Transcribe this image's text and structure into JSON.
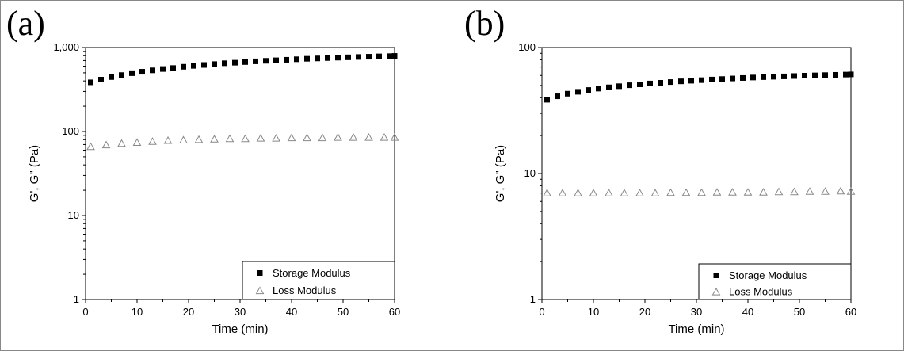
{
  "chart_data": [
    {
      "type": "scatter",
      "panel_label": "(a)",
      "xlabel": "Time (min)",
      "ylabel": "G', G\" (Pa)",
      "xlim": [
        0,
        60
      ],
      "ylim": [
        1,
        1000
      ],
      "yscale": "log",
      "xticks": [
        0,
        10,
        20,
        30,
        40,
        50,
        60
      ],
      "xtick_labels": [
        "0",
        "10",
        "20",
        "30",
        "40",
        "50",
        "60"
      ],
      "yticks": [
        1,
        10,
        100,
        1000
      ],
      "ytick_labels": [
        "1",
        "10",
        "100",
        "1,000"
      ],
      "legend_position": "bottom-right",
      "series": [
        {
          "name": "Storage Modulus",
          "marker": "filled-square",
          "color": "#000000",
          "x": [
            1,
            3,
            5,
            7,
            9,
            11,
            13,
            15,
            17,
            19,
            21,
            23,
            25,
            27,
            29,
            31,
            33,
            35,
            37,
            39,
            41,
            43,
            45,
            47,
            49,
            51,
            53,
            55,
            57,
            59,
            60
          ],
          "y": [
            385,
            415,
            445,
            470,
            495,
            515,
            535,
            555,
            570,
            590,
            605,
            620,
            635,
            650,
            660,
            672,
            685,
            695,
            705,
            715,
            725,
            735,
            742,
            750,
            758,
            765,
            772,
            778,
            785,
            790,
            795
          ]
        },
        {
          "name": "Loss Modulus",
          "marker": "open-triangle",
          "color": "#888888",
          "x": [
            1,
            4,
            7,
            10,
            13,
            16,
            19,
            22,
            25,
            28,
            31,
            34,
            37,
            40,
            43,
            46,
            49,
            52,
            55,
            58,
            60
          ],
          "y": [
            66,
            69,
            72,
            74,
            76,
            78,
            79,
            80,
            81,
            82,
            82,
            83,
            83,
            84,
            84,
            84,
            85,
            85,
            85,
            85,
            85
          ]
        }
      ]
    },
    {
      "type": "scatter",
      "panel_label": "(b)",
      "xlabel": "Time (min)",
      "ylabel": "G', G\" (Pa)",
      "xlim": [
        0,
        60
      ],
      "ylim": [
        1,
        100
      ],
      "yscale": "log",
      "xticks": [
        0,
        10,
        20,
        30,
        40,
        50,
        60
      ],
      "xtick_labels": [
        "0",
        "10",
        "20",
        "30",
        "40",
        "50",
        "60"
      ],
      "yticks": [
        1,
        10,
        100
      ],
      "ytick_labels": [
        "1",
        "10",
        "100"
      ],
      "legend_position": "bottom-right",
      "series": [
        {
          "name": "Storage Modulus",
          "marker": "filled-square",
          "color": "#000000",
          "x": [
            1,
            3,
            5,
            7,
            9,
            11,
            13,
            15,
            17,
            19,
            21,
            23,
            25,
            27,
            29,
            31,
            33,
            35,
            37,
            39,
            41,
            43,
            45,
            47,
            49,
            51,
            53,
            55,
            57,
            59,
            60
          ],
          "y": [
            38.5,
            41,
            43,
            44.5,
            46,
            47.2,
            48.3,
            49.3,
            50.2,
            51,
            51.8,
            52.5,
            53.2,
            53.9,
            54.5,
            55.1,
            55.7,
            56.2,
            56.8,
            57.3,
            57.8,
            58.2,
            58.6,
            59,
            59.4,
            59.8,
            60.1,
            60.4,
            60.7,
            61,
            61.2
          ]
        },
        {
          "name": "Loss Modulus",
          "marker": "open-triangle",
          "color": "#888888",
          "x": [
            1,
            4,
            7,
            10,
            13,
            16,
            19,
            22,
            25,
            28,
            31,
            34,
            37,
            40,
            43,
            46,
            49,
            52,
            55,
            58,
            60
          ],
          "y": [
            7.0,
            7.0,
            7.0,
            7.0,
            7.0,
            7.0,
            7.0,
            7.0,
            7.05,
            7.05,
            7.05,
            7.1,
            7.1,
            7.1,
            7.1,
            7.15,
            7.15,
            7.2,
            7.2,
            7.25,
            7.2
          ]
        }
      ]
    }
  ]
}
